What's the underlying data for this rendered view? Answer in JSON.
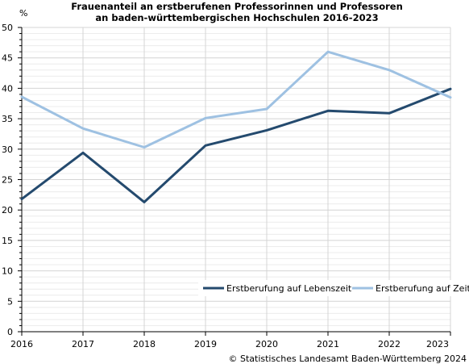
{
  "chart_data": {
    "type": "line",
    "title_lines": [
      "Frauenanteil an erstberufenen Professorinnen und Professoren",
      "an baden-württembergischen Hochschulen 2016-2023"
    ],
    "ylabel": "%",
    "x": [
      "2016",
      "2017",
      "2018",
      "2019",
      "2020",
      "2021",
      "2022",
      "2023"
    ],
    "ylim": [
      0,
      50
    ],
    "yticks": [
      0,
      5,
      10,
      15,
      20,
      25,
      30,
      35,
      40,
      45,
      50
    ],
    "minor_step": 1,
    "grid": true,
    "legend_position": "bottom-right",
    "series": [
      {
        "name": "Erstberufung auf Lebenszeit",
        "color": "#244a6e",
        "values": [
          21.8,
          29.4,
          21.3,
          30.6,
          33.1,
          36.3,
          35.9,
          39.9
        ]
      },
      {
        "name": "Erstberufung auf Zeit",
        "color": "#9ec1e2",
        "values": [
          38.6,
          33.4,
          30.3,
          35.1,
          36.6,
          46.0,
          43.0,
          38.5
        ]
      }
    ],
    "source": "© Statistisches Landesamt Baden-Württemberg 2024"
  }
}
